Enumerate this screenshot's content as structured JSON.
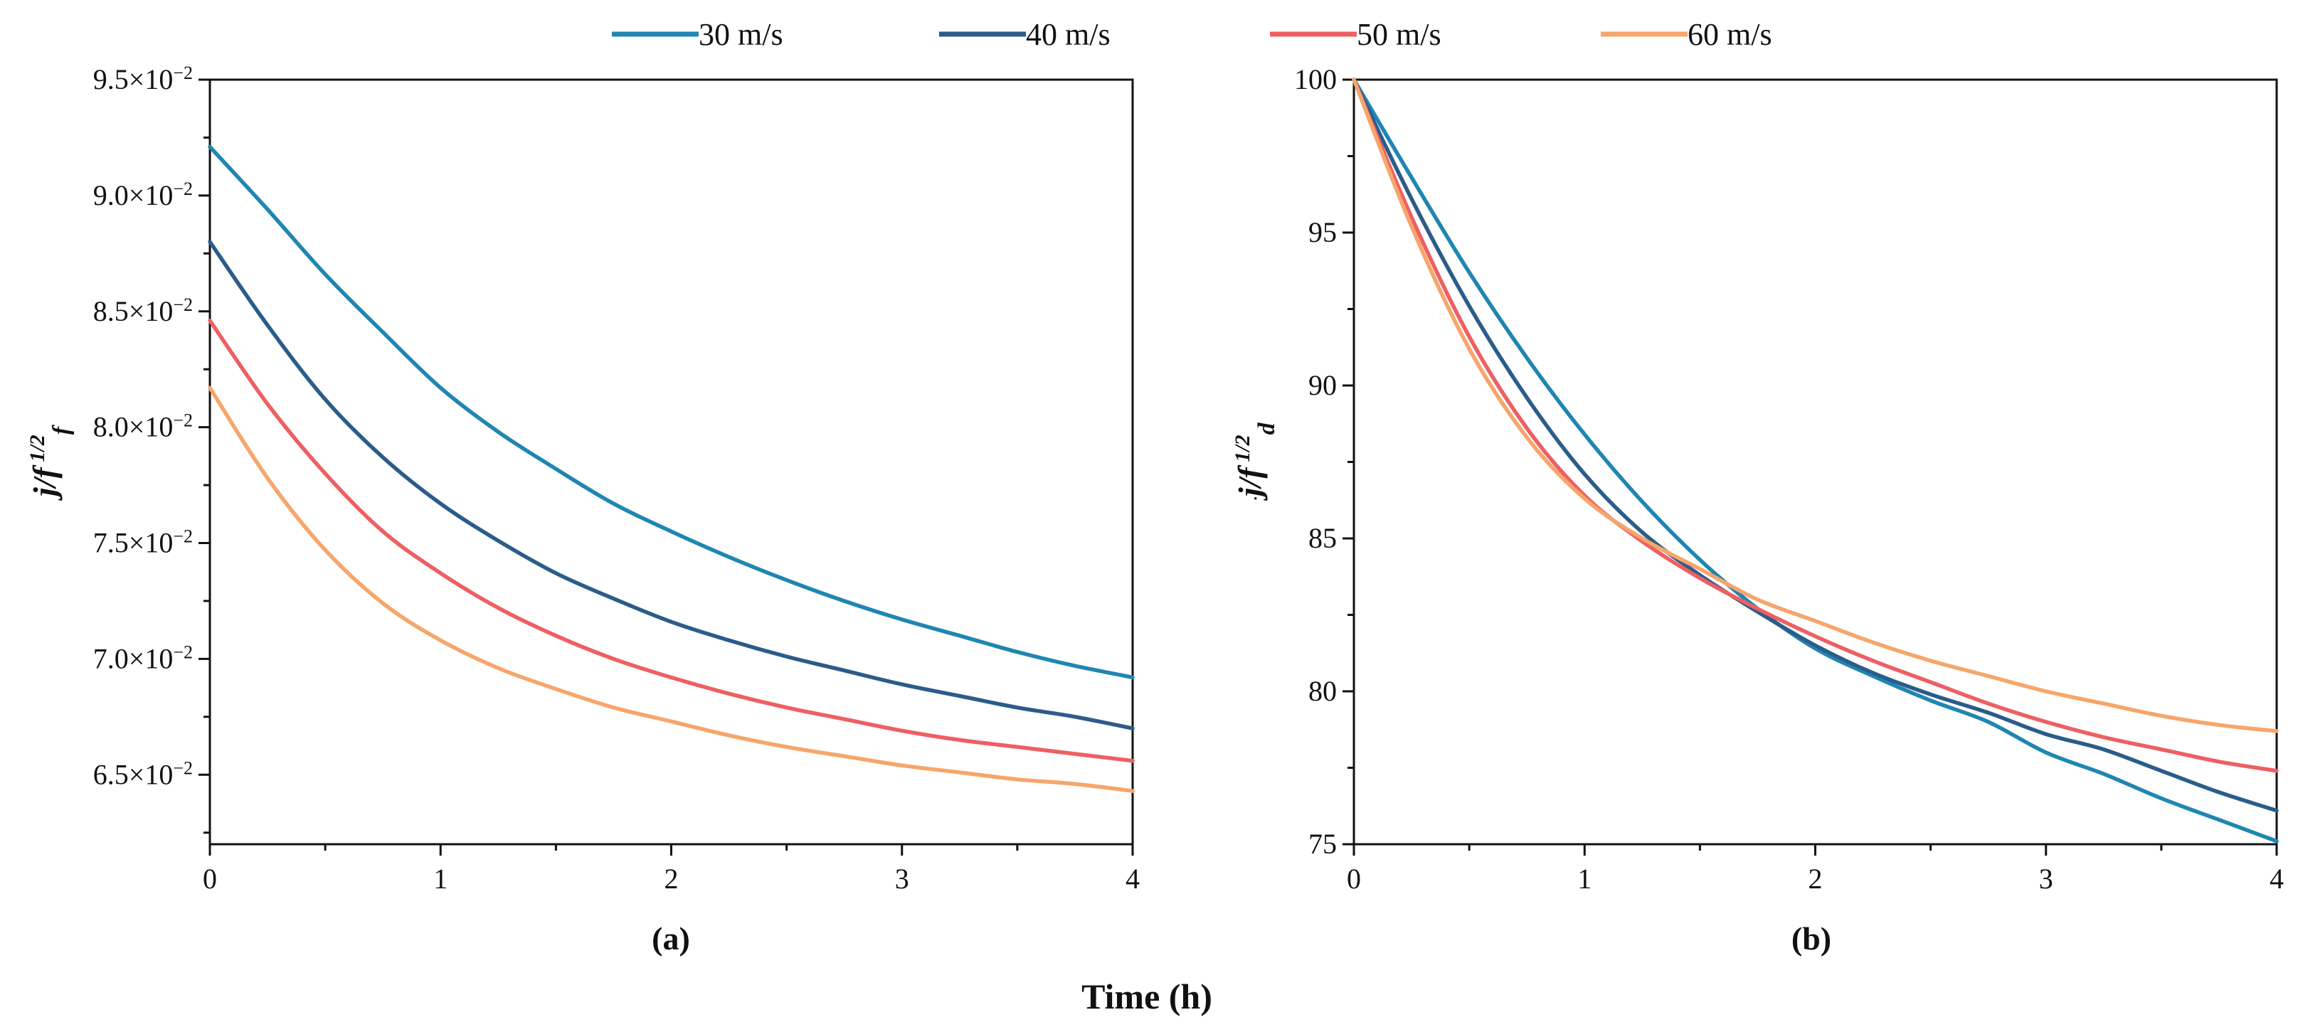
{
  "chart_data": [
    {
      "type": "line",
      "panel": "(a)",
      "title": "",
      "xlabel": "Time (h)",
      "ylabel": "j/f 1/2 f",
      "ylabel_parts": {
        "base": "j/f",
        "sup": "1/2",
        "sub": "f"
      },
      "xlim": [
        0,
        4
      ],
      "ylim": [
        0.062,
        0.095
      ],
      "xticks": [
        0,
        1,
        2,
        3,
        4
      ],
      "xtick_labels": [
        "0",
        "1",
        "2",
        "3",
        "4"
      ],
      "yticks": [
        0.065,
        0.07,
        0.075,
        0.08,
        0.085,
        0.09,
        0.095
      ],
      "ytick_labels": [
        {
          "mantissa": "6.5×10",
          "exp": "−2"
        },
        {
          "mantissa": "7.0×10",
          "exp": "−2"
        },
        {
          "mantissa": "7.5×10",
          "exp": "−2"
        },
        {
          "mantissa": "8.0×10",
          "exp": "−2"
        },
        {
          "mantissa": "8.5×10",
          "exp": "−2"
        },
        {
          "mantissa": "9.0×10",
          "exp": "−2"
        },
        {
          "mantissa": "9.5×10",
          "exp": "−2"
        }
      ],
      "x": [
        0,
        0.25,
        0.5,
        0.75,
        1,
        1.25,
        1.5,
        1.75,
        2,
        2.25,
        2.5,
        2.75,
        3,
        3.25,
        3.5,
        3.75,
        4
      ],
      "series": [
        {
          "name": "30 m/s",
          "color": "#1f86b2",
          "values": [
            0.0921,
            0.0894,
            0.0866,
            0.0841,
            0.0817,
            0.0798,
            0.0782,
            0.0767,
            0.0755,
            0.0744,
            0.0734,
            0.0725,
            0.0717,
            0.071,
            0.0703,
            0.0697,
            0.0692
          ]
        },
        {
          "name": "40 m/s",
          "color": "#2b5c8a",
          "values": [
            0.088,
            0.0844,
            0.0812,
            0.0787,
            0.0767,
            0.0751,
            0.0737,
            0.0726,
            0.0716,
            0.0708,
            0.0701,
            0.0695,
            0.0689,
            0.0684,
            0.0679,
            0.0675,
            0.067
          ]
        },
        {
          "name": "50 m/s",
          "color": "#ee5f63",
          "values": [
            0.0846,
            0.081,
            0.078,
            0.0755,
            0.0737,
            0.0722,
            0.071,
            0.07,
            0.0692,
            0.0685,
            0.0679,
            0.0674,
            0.0669,
            0.0665,
            0.0662,
            0.0659,
            0.0656
          ]
        },
        {
          "name": "60 m/s",
          "color": "#f7a56b",
          "values": [
            0.0817,
            0.0778,
            0.0747,
            0.0724,
            0.0708,
            0.0696,
            0.0687,
            0.0679,
            0.0673,
            0.0667,
            0.0662,
            0.0658,
            0.0654,
            0.0651,
            0.0648,
            0.0646,
            0.0643
          ]
        }
      ]
    },
    {
      "type": "line",
      "panel": "(b)",
      "title": "",
      "xlabel": "Time (h)",
      "ylabel": "j/f 1/2 d",
      "ylabel_parts": {
        "lead": "·",
        "base": "j/f",
        "sup": "1/2",
        "sub": "d"
      },
      "xlim": [
        0,
        4
      ],
      "ylim": [
        75,
        100
      ],
      "xticks": [
        0,
        1,
        2,
        3,
        4
      ],
      "xtick_labels": [
        "0",
        "1",
        "2",
        "3",
        "4"
      ],
      "yticks": [
        75,
        80,
        85,
        90,
        95,
        100
      ],
      "ytick_labels": [
        "75",
        "80",
        "85",
        "90",
        "95",
        "100"
      ],
      "x": [
        0,
        0.25,
        0.5,
        0.75,
        1,
        1.25,
        1.5,
        1.75,
        2,
        2.25,
        2.5,
        2.75,
        3,
        3.25,
        3.5,
        3.75,
        4
      ],
      "series": [
        {
          "name": "30 m/s",
          "color": "#1f86b2",
          "values": [
            100,
            96.8,
            93.7,
            90.9,
            88.4,
            86.2,
            84.3,
            82.7,
            81.4,
            80.5,
            79.7,
            79.0,
            78.0,
            77.3,
            76.5,
            75.8,
            75.1
          ]
        },
        {
          "name": "40 m/s",
          "color": "#2b5c8a",
          "values": [
            100,
            96.1,
            92.6,
            89.6,
            87.1,
            85.2,
            83.8,
            82.6,
            81.5,
            80.6,
            79.9,
            79.3,
            78.6,
            78.1,
            77.4,
            76.7,
            76.1
          ]
        },
        {
          "name": "50 m/s",
          "color": "#ee5f63",
          "values": [
            100,
            95.5,
            91.6,
            88.6,
            86.4,
            84.9,
            83.7,
            82.7,
            81.8,
            81.0,
            80.3,
            79.6,
            79.0,
            78.5,
            78.1,
            77.7,
            77.4
          ]
        },
        {
          "name": "60 m/s",
          "color": "#f7a56b",
          "values": [
            100,
            95.2,
            91.2,
            88.3,
            86.3,
            85.0,
            84.0,
            83.0,
            82.3,
            81.6,
            81.0,
            80.5,
            80.0,
            79.6,
            79.2,
            78.9,
            78.7
          ]
        }
      ]
    }
  ],
  "legend": [
    {
      "label": "30 m/s",
      "color": "#1f86b2"
    },
    {
      "label": "40 m/s",
      "color": "#2b5c8a"
    },
    {
      "label": "50 m/s",
      "color": "#ee5f63"
    },
    {
      "label": "60 m/s",
      "color": "#f7a56b"
    }
  ],
  "shared_xlabel": "Time (h)"
}
